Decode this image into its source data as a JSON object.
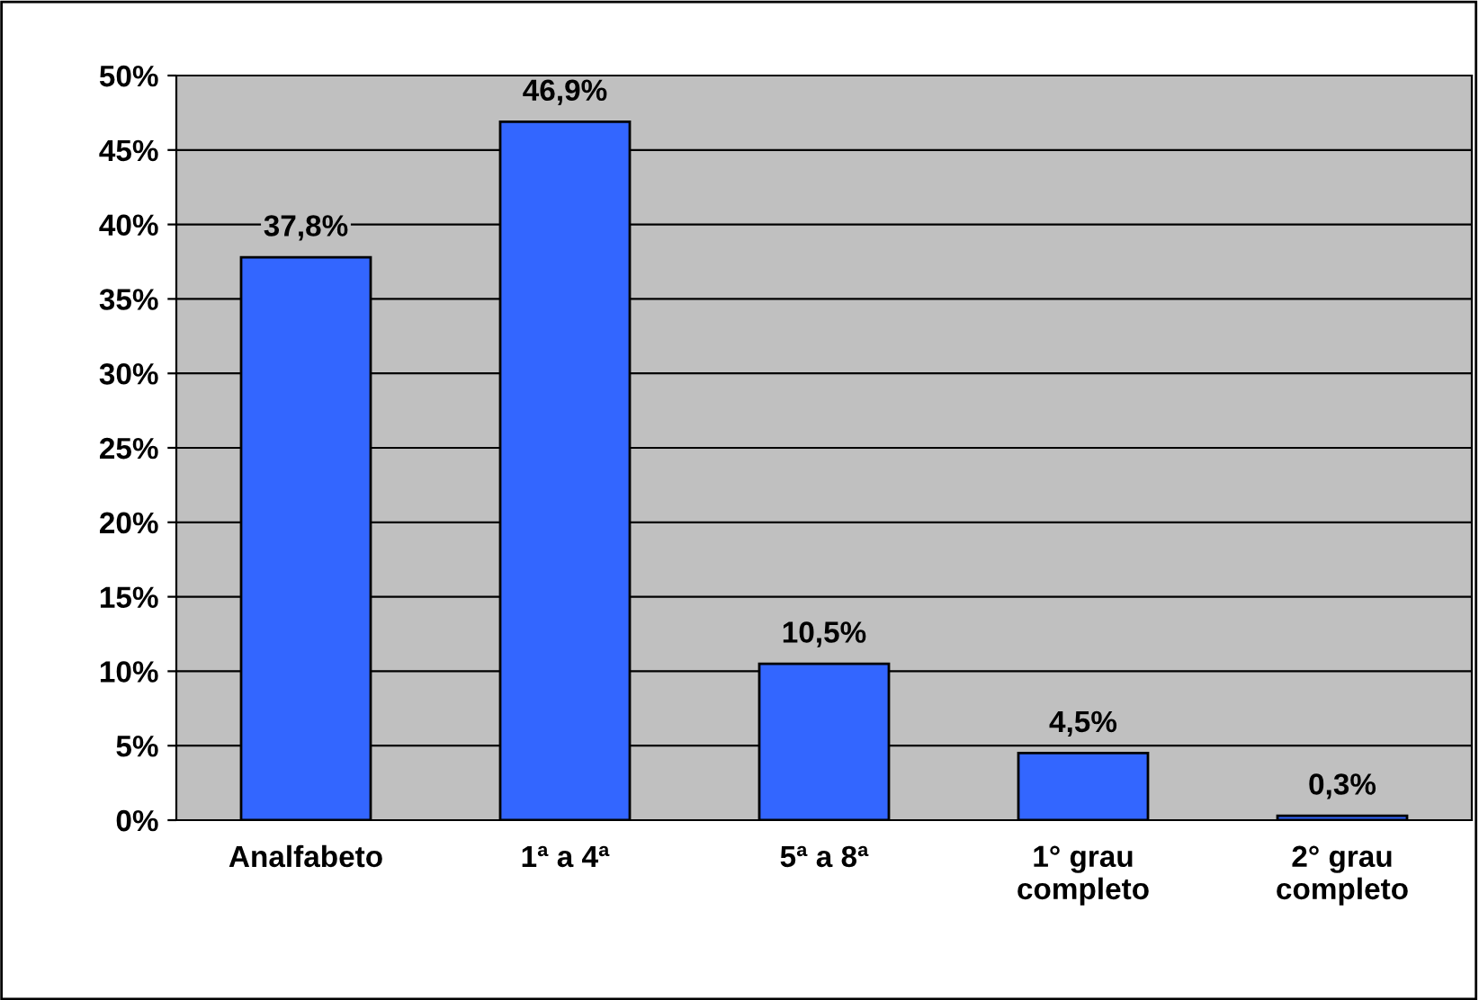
{
  "chart_data": {
    "type": "bar",
    "categories": [
      "Analfabeto",
      "1ª a 4ª",
      "5ª a 8ª",
      "1° grau\ncompleto",
      "2° grau\ncompleto"
    ],
    "values": [
      37.8,
      46.9,
      10.5,
      4.5,
      0.3
    ],
    "value_labels": [
      "37,8%",
      "46,9%",
      "10,5%",
      "4,5%",
      "0,3%"
    ],
    "color": "#3366ff",
    "ylim": [
      0,
      50
    ],
    "yticks": [
      {
        "value": 0,
        "label": "0%"
      },
      {
        "value": 5,
        "label": "5%"
      },
      {
        "value": 10,
        "label": "10%"
      },
      {
        "value": 15,
        "label": "15%"
      },
      {
        "value": 20,
        "label": "20%"
      },
      {
        "value": 25,
        "label": "25%"
      },
      {
        "value": 30,
        "label": "30%"
      },
      {
        "value": 35,
        "label": "35%"
      },
      {
        "value": 40,
        "label": "40%"
      },
      {
        "value": 45,
        "label": "45%"
      },
      {
        "value": 50,
        "label": "50%"
      }
    ],
    "grid": "y",
    "legend": false
  }
}
